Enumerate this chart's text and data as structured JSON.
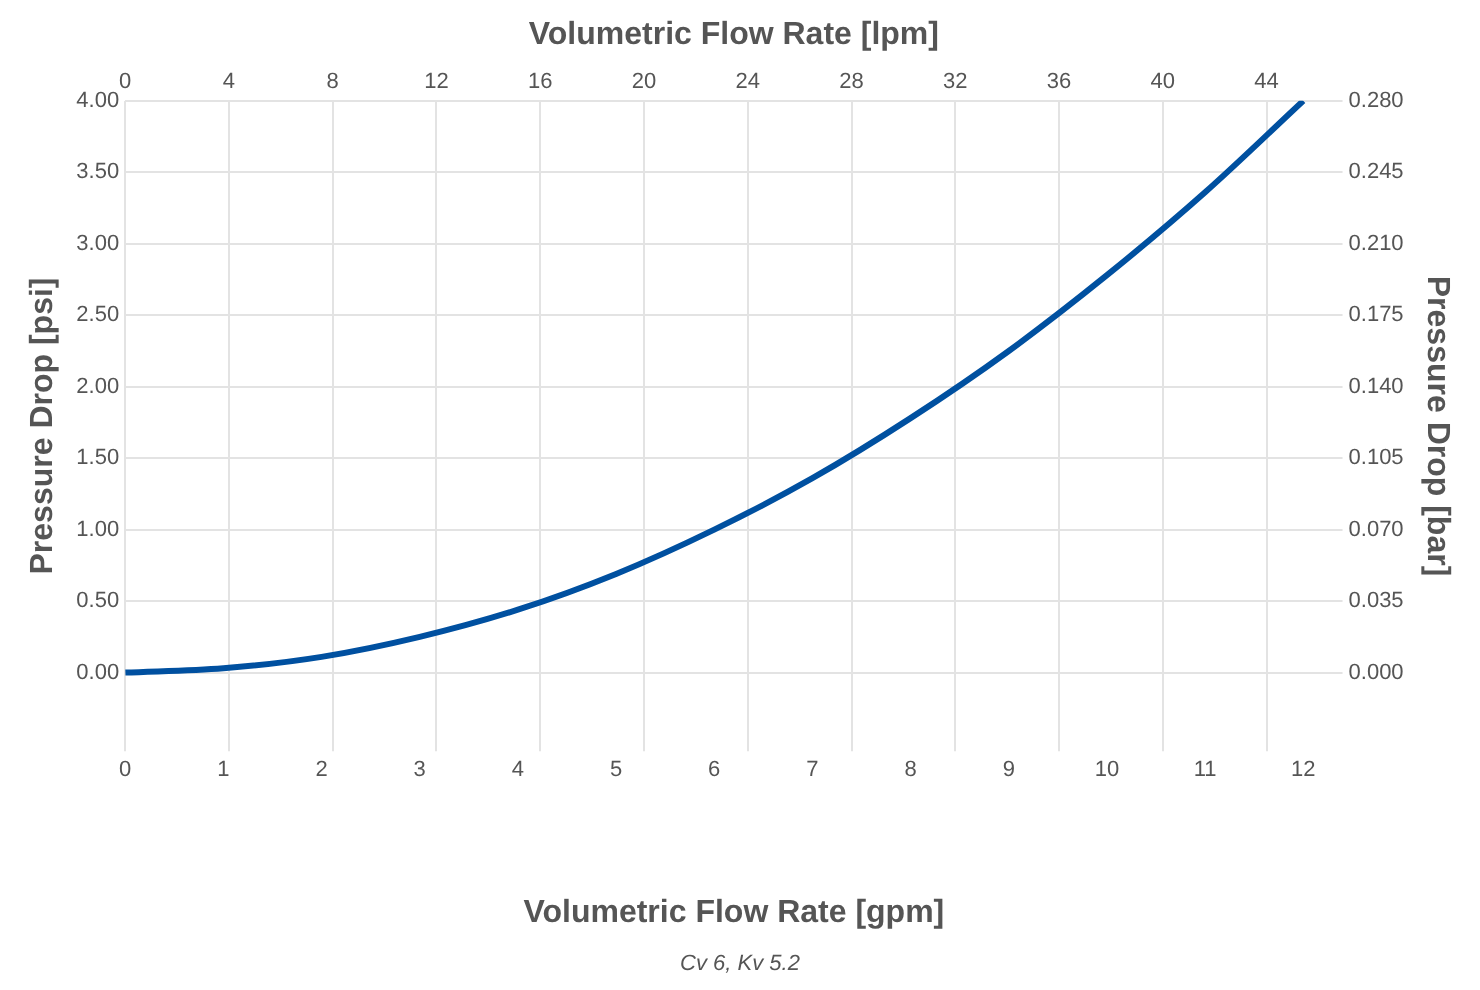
{
  "chart_data": {
    "type": "line",
    "x2label": "Volumetric Flow Rate [lpm]",
    "xlabel": "Volumetric Flow Rate [gpm]",
    "ylabel": "Pressure Drop [psi]",
    "y2label": "Pressure Drop [bar]",
    "x": [
      0,
      1,
      2,
      3,
      4,
      5,
      6,
      7,
      8,
      9,
      10,
      11,
      12
    ],
    "series": [
      {
        "color": "#0050a0",
        "values": [
          0,
          0.03,
          0.11,
          0.25,
          0.44,
          0.69,
          1.0,
          1.36,
          1.78,
          2.25,
          2.78,
          3.36,
          4.0
        ]
      }
    ],
    "xlim": [
      0,
      12.4
    ],
    "xticks": [
      0,
      1,
      2,
      3,
      4,
      5,
      6,
      7,
      8,
      9,
      10,
      11,
      12
    ],
    "x2lim": [
      0,
      46.93
    ],
    "x2ticks": [
      0,
      4,
      8,
      12,
      16,
      20,
      24,
      28,
      32,
      36,
      40,
      44
    ],
    "ylim": [
      -0.55,
      4
    ],
    "yticks": [
      {
        "value": 0,
        "label": "0.00"
      },
      {
        "value": 0.5,
        "label": "0.50"
      },
      {
        "value": 1,
        "label": "1.00"
      },
      {
        "value": 1.5,
        "label": "1.50"
      },
      {
        "value": 2,
        "label": "2.00"
      },
      {
        "value": 2.5,
        "label": "2.50"
      },
      {
        "value": 3,
        "label": "3.00"
      },
      {
        "value": 3.5,
        "label": "3.50"
      },
      {
        "value": 4,
        "label": "4.00"
      }
    ],
    "y2lim": [
      -0.0385,
      0.28
    ],
    "y2ticks": [
      {
        "value": 0,
        "label": "0.000"
      },
      {
        "value": 0.035,
        "label": "0.035"
      },
      {
        "value": 0.07,
        "label": "0.070"
      },
      {
        "value": 0.105,
        "label": "0.105"
      },
      {
        "value": 0.14,
        "label": "0.140"
      },
      {
        "value": 0.175,
        "label": "0.175"
      },
      {
        "value": 0.21,
        "label": "0.210"
      },
      {
        "value": 0.245,
        "label": "0.245"
      },
      {
        "value": 0.28,
        "label": "0.280"
      }
    ],
    "grid": true,
    "legend": false,
    "marker": "none",
    "line_style": "solid",
    "annotations": [
      "Cv 6, Kv 5.2"
    ]
  }
}
